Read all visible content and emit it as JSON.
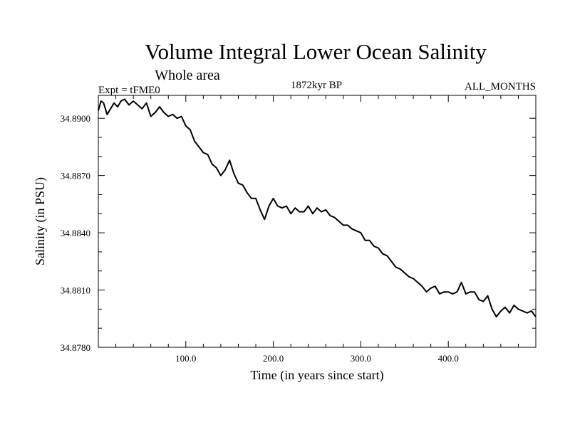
{
  "chart_data": {
    "type": "line",
    "title": "Volume Integral Lower Ocean Salinity",
    "subtitle": "Whole area",
    "left_label": "Expt = tFME0",
    "center_label": "1872kyr BP",
    "right_label": "ALL_MONTHS",
    "xlabel": "Time (in years since start)",
    "ylabel": "Salinity (in PSU)",
    "xlim": [
      0,
      500
    ],
    "ylim": [
      34.878,
      34.8912
    ],
    "xticks": [
      100,
      200,
      300,
      400
    ],
    "xtick_labels": [
      "100.0",
      "200.0",
      "300.0",
      "400.0"
    ],
    "yticks": [
      34.878,
      34.881,
      34.884,
      34.887,
      34.89
    ],
    "ytick_labels": [
      "34.8780",
      "34.8810",
      "34.8840",
      "34.8870",
      "34.8900"
    ],
    "grid": false,
    "series": [
      {
        "name": "salinity",
        "x": [
          0,
          3,
          6,
          10,
          14,
          18,
          22,
          26,
          30,
          35,
          40,
          45,
          50,
          55,
          60,
          65,
          70,
          75,
          80,
          85,
          90,
          95,
          100,
          105,
          110,
          115,
          120,
          125,
          130,
          135,
          140,
          145,
          150,
          155,
          160,
          165,
          170,
          175,
          180,
          185,
          190,
          195,
          200,
          205,
          210,
          215,
          220,
          225,
          230,
          235,
          240,
          245,
          250,
          255,
          260,
          265,
          270,
          275,
          280,
          285,
          290,
          295,
          300,
          305,
          310,
          315,
          320,
          325,
          330,
          335,
          340,
          345,
          350,
          355,
          360,
          365,
          370,
          375,
          380,
          385,
          390,
          395,
          400,
          405,
          410,
          415,
          420,
          425,
          430,
          435,
          440,
          445,
          450,
          455,
          460,
          465,
          470,
          475,
          480,
          485,
          490,
          495,
          500
        ],
        "values": [
          34.8904,
          34.8909,
          34.8908,
          34.8902,
          34.8905,
          34.8908,
          34.8906,
          34.8909,
          34.891,
          34.8907,
          34.8909,
          34.8907,
          34.8905,
          34.8908,
          34.8901,
          34.8903,
          34.8906,
          34.8903,
          34.8901,
          34.8902,
          34.89,
          34.8901,
          34.8896,
          34.8894,
          34.8888,
          34.8885,
          34.8882,
          34.8881,
          34.8876,
          34.8874,
          34.887,
          34.8873,
          34.8878,
          34.8871,
          34.8866,
          34.8865,
          34.8861,
          34.8858,
          34.8858,
          34.8852,
          34.8847,
          34.8854,
          34.8858,
          34.8854,
          34.8853,
          34.8854,
          34.885,
          34.8853,
          34.8851,
          34.8851,
          34.8854,
          34.885,
          34.8853,
          34.8851,
          34.8852,
          34.8849,
          34.8848,
          34.8846,
          34.8844,
          34.8844,
          34.8842,
          34.8841,
          34.884,
          34.8836,
          34.8836,
          34.8833,
          34.8832,
          34.8829,
          34.8828,
          34.8825,
          34.8822,
          34.8821,
          34.8819,
          34.8817,
          34.8816,
          34.8814,
          34.8812,
          34.8809,
          34.8811,
          34.8812,
          34.8808,
          34.8809,
          34.8809,
          34.8808,
          34.8809,
          34.8814,
          34.8808,
          34.8809,
          34.8809,
          34.8805,
          34.8804,
          34.8807,
          34.88,
          34.8796,
          34.8799,
          34.8801,
          34.8798,
          34.8802,
          34.88,
          34.8799,
          34.8798,
          34.8799,
          34.8796
        ]
      }
    ]
  }
}
